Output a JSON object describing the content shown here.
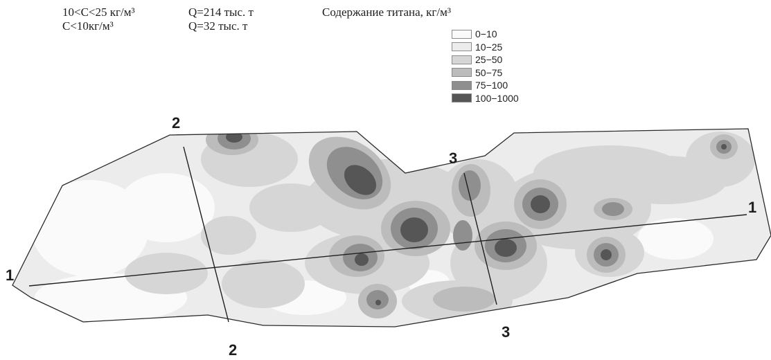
{
  "stats": [
    {
      "range": "10<C<25 кг/м³",
      "q": "Q=214 тыс. т"
    },
    {
      "range": "C<10кг/м³",
      "q": "Q=32 тыс. т"
    }
  ],
  "legend": {
    "title": "Содержание титана, кг/м³",
    "classes": [
      {
        "label": "0−10",
        "color": "#fafafa"
      },
      {
        "label": "10−25",
        "color": "#ececec"
      },
      {
        "label": "25−50",
        "color": "#d6d6d6"
      },
      {
        "label": "50−75",
        "color": "#bcbcbc"
      },
      {
        "label": "75−100",
        "color": "#8f8f8f"
      },
      {
        "label": "100−1000",
        "color": "#565656"
      }
    ]
  },
  "profiles": [
    {
      "name": "1",
      "label_start": "1",
      "label_end": "1"
    },
    {
      "name": "2",
      "label_start": "2",
      "label_end": "2"
    },
    {
      "name": "3",
      "label_start": "3",
      "label_end": "3"
    }
  ]
}
